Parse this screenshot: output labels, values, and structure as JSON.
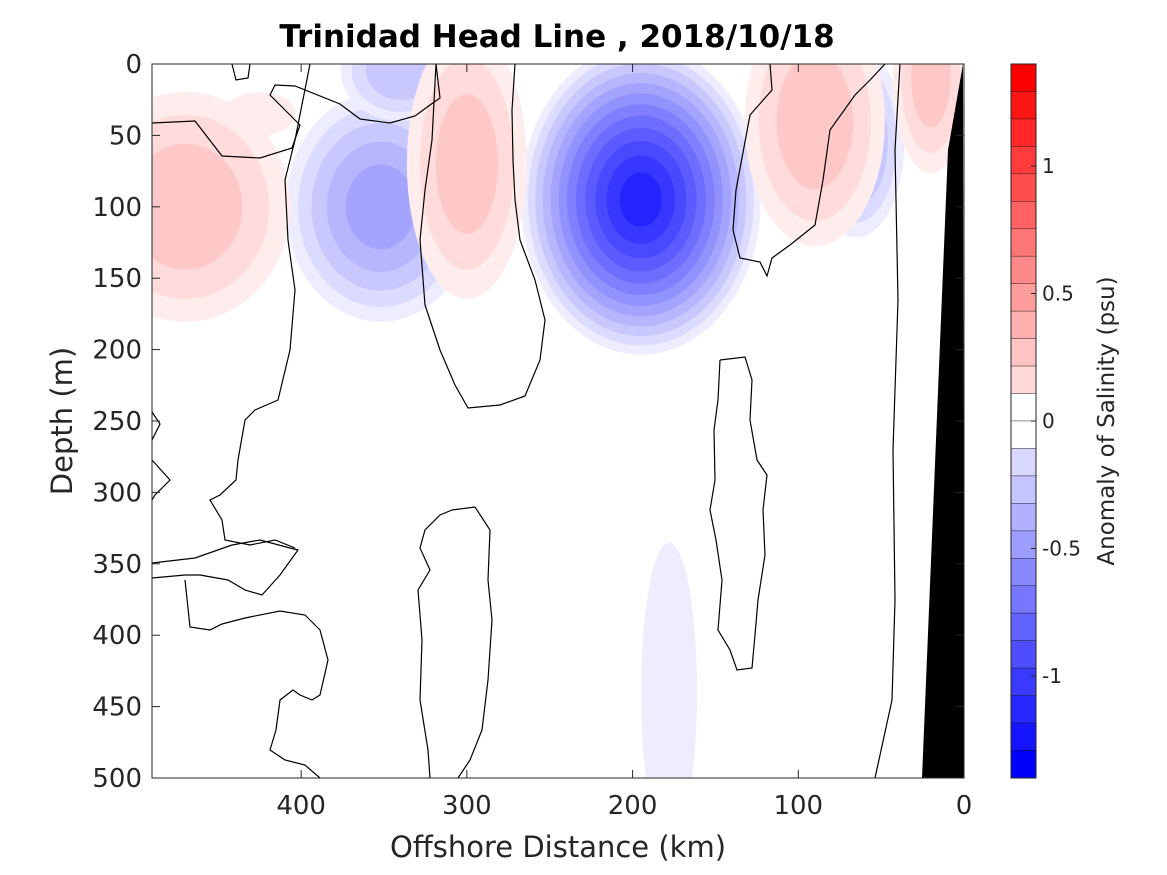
{
  "chart_data": {
    "type": "heatmap",
    "subtype": "filled-contour",
    "title": "Trinidad Head Line , 2018/10/18",
    "xlabel": "Offshore Distance (km)",
    "ylabel": "Depth (m)",
    "xlim": [
      490,
      0
    ],
    "ylim": [
      0,
      500
    ],
    "x_direction": "reversed",
    "y_direction": "reversed (depth increases downward)",
    "x_ticks": [
      "400",
      "300",
      "200",
      "100",
      "0"
    ],
    "y_ticks": [
      "0",
      "50",
      "100",
      "150",
      "200",
      "250",
      "300",
      "350",
      "400",
      "450",
      "500"
    ],
    "colorbar": {
      "label": "Anomaly of Salinity (psu)",
      "range": [
        -1.4,
        1.4
      ],
      "ticks": [
        "1",
        "0.5",
        "0",
        "-0.5",
        "-1"
      ],
      "levels": 26,
      "colormap": "blue-white-red",
      "low_color": "#0000ff",
      "high_color": "#ff0000"
    },
    "anomaly_features": [
      {
        "sign": "negative",
        "center_km": 195,
        "center_depth_m": 95,
        "peak_psu": -1.2
      },
      {
        "sign": "negative",
        "center_km": 352,
        "center_depth_m": 100,
        "peak_psu": -0.5
      },
      {
        "sign": "negative",
        "center_km": 340,
        "center_depth_m": 5,
        "peak_psu": -0.3
      },
      {
        "sign": "negative",
        "center_km": 65,
        "center_depth_m": 55,
        "peak_psu": -0.4
      },
      {
        "sign": "negative",
        "center_km": 178,
        "center_depth_m": 440,
        "peak_psu": -0.1
      },
      {
        "sign": "positive",
        "center_km": 470,
        "center_depth_m": 100,
        "peak_psu": 0.3
      },
      {
        "sign": "positive",
        "center_km": 300,
        "center_depth_m": 70,
        "peak_psu": 0.3
      },
      {
        "sign": "positive",
        "center_km": 90,
        "center_depth_m": 40,
        "peak_psu": 0.35
      },
      {
        "sign": "positive",
        "center_km": 20,
        "center_depth_m": 10,
        "peak_psu": 0.3
      },
      {
        "sign": "positive",
        "center_km": 425,
        "center_depth_m": 35,
        "peak_psu": 0.15
      }
    ],
    "bathymetry_color": "#000000"
  }
}
